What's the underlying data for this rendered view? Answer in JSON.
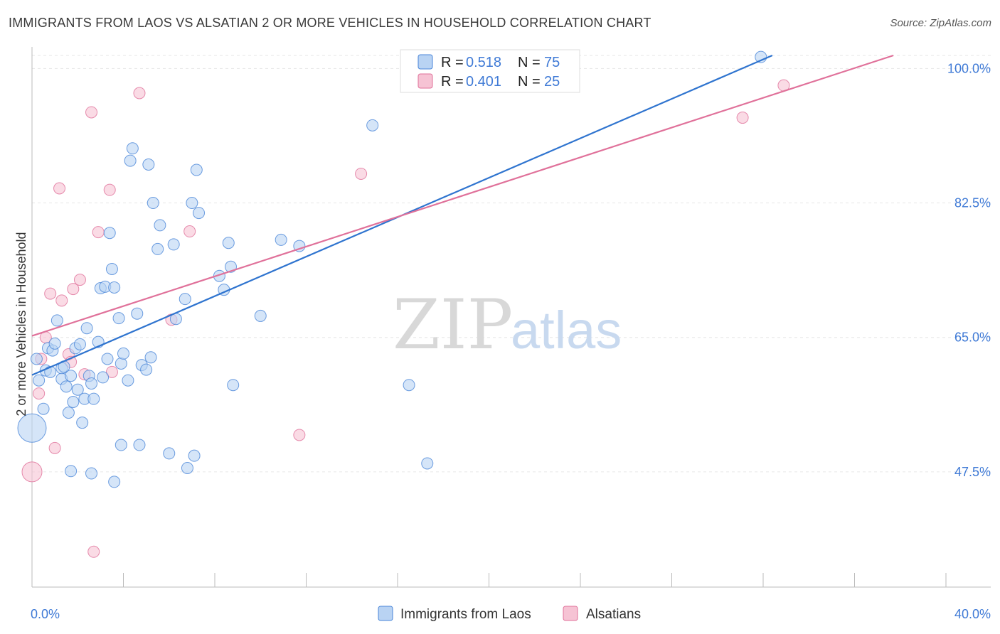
{
  "title": "IMMIGRANTS FROM LAOS VS ALSATIAN 2 OR MORE VEHICLES IN HOUSEHOLD CORRELATION CHART",
  "source": "Source: ZipAtlas.com",
  "watermark": {
    "zip": "ZIP",
    "atlas": "atlas"
  },
  "colors": {
    "blue": "#4a86d8",
    "blue_fill": "#b9d3f3",
    "pink": "#e0719a",
    "pink_fill": "#f6c3d4",
    "tick_text": "#3f7ad6",
    "grid": "#e6e6e6"
  },
  "legend": {
    "rows": [
      {
        "r_label": "R =",
        "r_value": "0.518",
        "n_label": "N =",
        "n_value": "75"
      },
      {
        "r_label": "R =",
        "r_value": "0.401",
        "n_label": "N =",
        "n_value": "25"
      }
    ]
  },
  "bottom_legend": [
    "Immigrants from Laos",
    "Alsatians"
  ],
  "chart_data": {
    "type": "scatter",
    "title": "IMMIGRANTS FROM LAOS VS ALSATIAN 2 OR MORE VEHICLES IN HOUSEHOLD CORRELATION CHART",
    "xlabel": "",
    "ylabel": "2 or more Vehicles in Household",
    "xlim": [
      0,
      40
    ],
    "ylim": [
      32.5,
      101.7
    ],
    "x_tick_labels": [
      "0.0%",
      "40.0%"
    ],
    "y_ticks": [
      47.5,
      65.0,
      82.5,
      100.0
    ],
    "y_tick_labels": [
      "47.5%",
      "65.0%",
      "82.5%",
      "100.0%"
    ],
    "grid": true,
    "legend_placement": "top-center",
    "series": [
      {
        "name": "Immigrants from Laos",
        "color": "#4a86d8",
        "trend": {
          "x": [
            0.0,
            32.4
          ],
          "y": [
            60.1,
            101.7
          ]
        },
        "points": [
          [
            0.0,
            53.2,
            3
          ],
          [
            0.2,
            62.2,
            1
          ],
          [
            0.3,
            59.4,
            1
          ],
          [
            0.5,
            55.7,
            1
          ],
          [
            0.6,
            60.7,
            1
          ],
          [
            0.7,
            63.6,
            1
          ],
          [
            0.8,
            60.5,
            1
          ],
          [
            0.9,
            63.3,
            1
          ],
          [
            1.0,
            64.2,
            1
          ],
          [
            1.1,
            67.2,
            1
          ],
          [
            1.3,
            61.0,
            1
          ],
          [
            1.3,
            59.6,
            1
          ],
          [
            1.4,
            61.2,
            1
          ],
          [
            1.5,
            58.6,
            1
          ],
          [
            1.6,
            55.2,
            1
          ],
          [
            1.7,
            60.0,
            1
          ],
          [
            1.7,
            47.6,
            1
          ],
          [
            1.8,
            56.6,
            1
          ],
          [
            1.9,
            63.6,
            1
          ],
          [
            2.0,
            58.2,
            1
          ],
          [
            2.1,
            64.1,
            1
          ],
          [
            2.2,
            53.9,
            1
          ],
          [
            2.3,
            57.0,
            1
          ],
          [
            2.4,
            66.2,
            1
          ],
          [
            2.5,
            60.0,
            1
          ],
          [
            2.6,
            59.0,
            1
          ],
          [
            2.6,
            47.3,
            1
          ],
          [
            2.7,
            57.0,
            1
          ],
          [
            2.9,
            64.4,
            1
          ],
          [
            3.0,
            71.4,
            1
          ],
          [
            3.1,
            59.8,
            1
          ],
          [
            3.2,
            71.6,
            1
          ],
          [
            3.3,
            62.2,
            1
          ],
          [
            3.4,
            78.6,
            1
          ],
          [
            3.5,
            73.9,
            1
          ],
          [
            3.6,
            71.5,
            1
          ],
          [
            3.6,
            46.2,
            1
          ],
          [
            3.8,
            67.5,
            1
          ],
          [
            3.9,
            61.6,
            1
          ],
          [
            3.9,
            51.0,
            1
          ],
          [
            4.0,
            62.9,
            1
          ],
          [
            4.2,
            59.4,
            1
          ],
          [
            4.3,
            88.0,
            1
          ],
          [
            4.4,
            89.6,
            1
          ],
          [
            4.6,
            68.1,
            1
          ],
          [
            4.7,
            51.0,
            1
          ],
          [
            4.8,
            61.4,
            1
          ],
          [
            5.0,
            60.8,
            1
          ],
          [
            5.1,
            87.5,
            1
          ],
          [
            5.2,
            62.4,
            1
          ],
          [
            5.3,
            82.5,
            1
          ],
          [
            5.5,
            76.5,
            1
          ],
          [
            5.6,
            79.6,
            1
          ],
          [
            6.0,
            49.9,
            1
          ],
          [
            6.2,
            77.1,
            1
          ],
          [
            6.3,
            67.4,
            1
          ],
          [
            6.7,
            70.0,
            1
          ],
          [
            6.8,
            48.0,
            1
          ],
          [
            7.0,
            82.5,
            1
          ],
          [
            7.1,
            49.6,
            1
          ],
          [
            7.2,
            86.8,
            1
          ],
          [
            7.3,
            81.2,
            1
          ],
          [
            8.2,
            73.0,
            1
          ],
          [
            8.4,
            71.2,
            1
          ],
          [
            8.6,
            77.3,
            1
          ],
          [
            8.7,
            74.2,
            1
          ],
          [
            8.8,
            58.8,
            1
          ],
          [
            10.0,
            67.8,
            1
          ],
          [
            10.9,
            77.7,
            1
          ],
          [
            11.7,
            76.9,
            1
          ],
          [
            14.9,
            92.6,
            1
          ],
          [
            16.5,
            58.8,
            1
          ],
          [
            17.3,
            48.6,
            1
          ],
          [
            19.2,
            100.0,
            1
          ],
          [
            31.9,
            101.5,
            1
          ]
        ]
      },
      {
        "name": "Alsatians",
        "color": "#e0719a",
        "trend": {
          "x": [
            0.0,
            37.7
          ],
          "y": [
            65.2,
            101.7
          ]
        },
        "points": [
          [
            0.0,
            47.5,
            2
          ],
          [
            0.3,
            57.7,
            1
          ],
          [
            0.4,
            62.2,
            1
          ],
          [
            0.6,
            65.0,
            1
          ],
          [
            0.8,
            70.7,
            1
          ],
          [
            1.0,
            50.6,
            1
          ],
          [
            1.2,
            84.4,
            1
          ],
          [
            1.3,
            69.8,
            1
          ],
          [
            1.6,
            62.8,
            1
          ],
          [
            1.7,
            61.8,
            1
          ],
          [
            1.8,
            71.3,
            1
          ],
          [
            2.1,
            72.5,
            1
          ],
          [
            2.3,
            60.2,
            1
          ],
          [
            2.6,
            94.3,
            1
          ],
          [
            2.7,
            37.1,
            1
          ],
          [
            2.9,
            78.7,
            1
          ],
          [
            3.4,
            84.2,
            1
          ],
          [
            3.5,
            60.5,
            1
          ],
          [
            4.7,
            96.8,
            1
          ],
          [
            6.1,
            67.3,
            1
          ],
          [
            6.9,
            78.8,
            1
          ],
          [
            11.7,
            52.3,
            1
          ],
          [
            14.4,
            86.3,
            1
          ],
          [
            31.1,
            93.6,
            1
          ],
          [
            32.9,
            97.8,
            1
          ]
        ]
      }
    ]
  }
}
